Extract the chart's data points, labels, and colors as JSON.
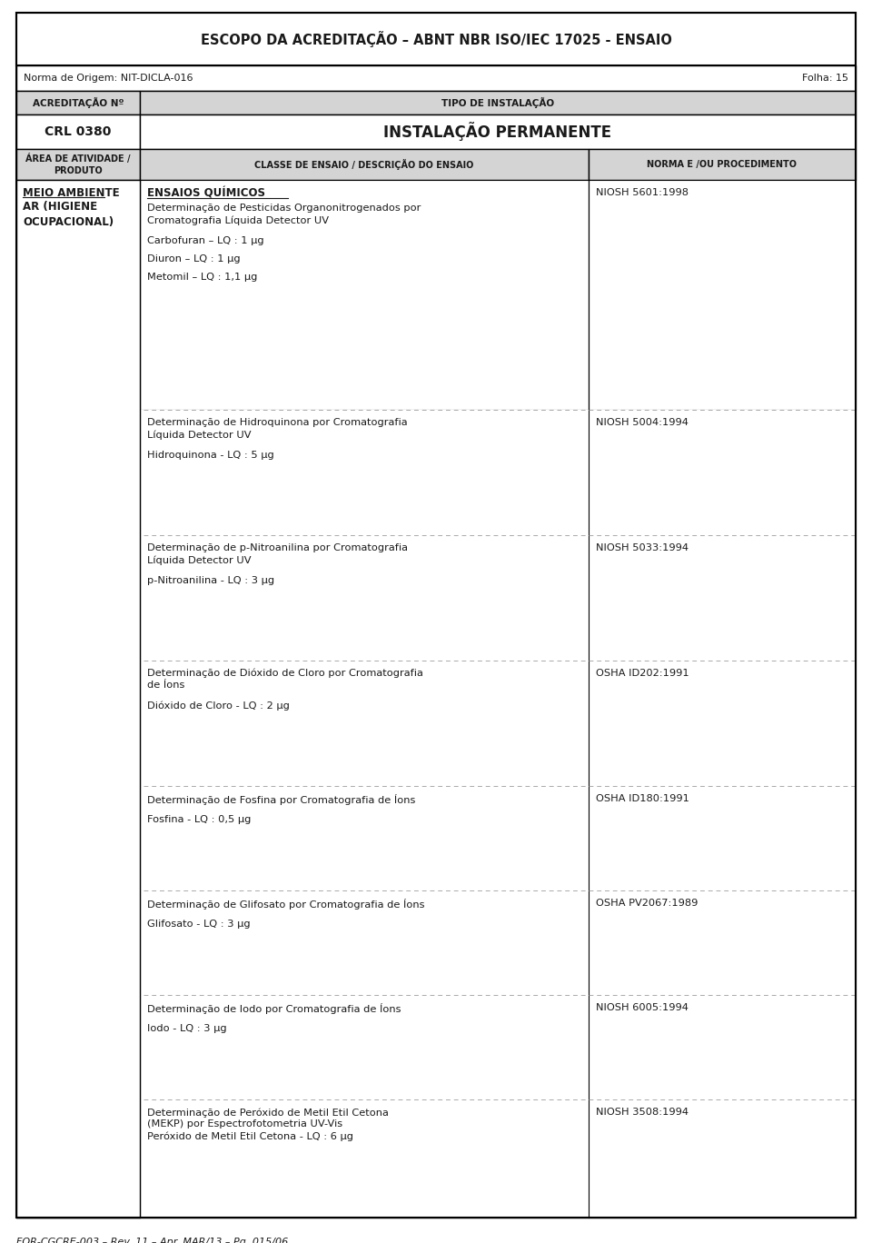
{
  "title": "ESCOPO DA ACREDITAÇÃO – ABNT NBR ISO/IEC 17025 - ENSAIO",
  "norma_origem": "Norma de Origem: NIT-DICLA-016",
  "folha": "Folha: 15",
  "acreditacao_label": "ACREDITAÇÃO Nº",
  "tipo_instalacao_label": "TIPO DE INSTALAÇÃO",
  "acreditacao_value": "CRL 0380",
  "instalacao_value": "INSTALAÇÃO PERMANENTE",
  "area_label": "ÁREA DE ATIVIDADE /\nPRODUTO",
  "classe_label": "CLASSE DE ENSAIO / DESCRIÇÃO DO ENSAIO",
  "norma_label": "NORMA E /OU PROCEDIMENTO",
  "area_value_line1": "MEIO AMBIENTE",
  "area_value_line2": "AR (HIGIENE\nOCUPACIONAL)",
  "footer": "FOR-CGCRE-003 – Rev. 11 – Apr. MAR/13 – Pg. 015/06",
  "rows": [
    {
      "main": "ENSAIOS QUÍMICOS\nDeterminação de Pesticidas Organonitrogenados por\nCromatografia Líquida Detector UV",
      "lq_items": [
        "Carbofuran – LQ : 1 µg",
        "Diuron – LQ : 1 µg",
        "Metomil – LQ : 1,1 µg"
      ],
      "norma": "NIOSH 5601:1998",
      "main_bold_first": true
    },
    {
      "main": "Determinação de Hidroquinona por Cromatografia\nLíquida Detector UV",
      "lq_items": [
        "Hidroquinona - LQ : 5 µg"
      ],
      "norma": "NIOSH 5004:1994",
      "main_bold_first": false
    },
    {
      "main": "Determinação de p-Nitroanilina por Cromatografia\nLíquida Detector UV",
      "lq_items": [
        "p-Nitroanilina - LQ : 3 µg"
      ],
      "norma": "NIOSH 5033:1994",
      "main_bold_first": false
    },
    {
      "main": "Determinação de Dióxido de Cloro por Cromatografia\nde Íons",
      "lq_items": [
        "Dióxido de Cloro - LQ : 2 µg"
      ],
      "norma": "OSHA ID202:1991",
      "main_bold_first": false
    },
    {
      "main": "Determinação de Fosfina por Cromatografia de Íons",
      "lq_items": [
        "Fosfina - LQ : 0,5 µg"
      ],
      "norma": "OSHA ID180:1991",
      "main_bold_first": false
    },
    {
      "main": "Determinação de Glifosato por Cromatografia de Íons",
      "lq_items": [
        "Glifosato - LQ : 3 µg"
      ],
      "norma": "OSHA PV2067:1989",
      "main_bold_first": false
    },
    {
      "main": "Determinação de Iodo por Cromatografia de Íons",
      "lq_items": [
        "Iodo - LQ : 3 µg"
      ],
      "norma": "NIOSH 6005:1994",
      "main_bold_first": false
    },
    {
      "main": "Determinação de Peróxido de Metil Etil Cetona\n(MEKP) por Espectrofotometria UV-Vis\nPeróxido de Metil Etil Cetona - LQ : 6 µg",
      "lq_items": [],
      "norma": "NIOSH 3508:1994",
      "main_bold_first": false
    }
  ],
  "bg_header": "#d4d4d4",
  "bg_white": "#ffffff",
  "text_color": "#1a1a1a",
  "border_color": "#000000",
  "dotted_color": "#aaaaaa"
}
